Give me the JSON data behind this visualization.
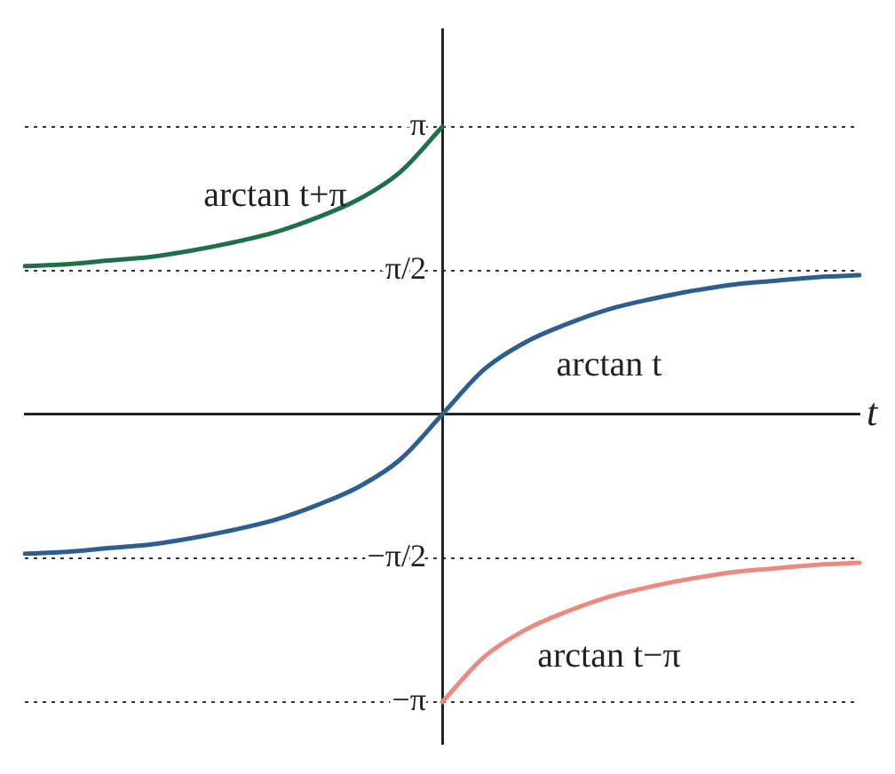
{
  "chart_data": {
    "type": "line",
    "xlabel": "t",
    "categories": [
      null,
      null,
      null,
      null,
      null,
      null,
      null,
      null,
      null,
      null,
      null,
      null,
      null,
      null,
      null,
      null,
      null,
      null,
      null,
      null,
      null
    ],
    "series": [
      {
        "name": "arctan t+π",
        "color": "#1e7048",
        "values": [
          1.62,
          1.64,
          1.68,
          1.72,
          1.79,
          1.88,
          1.99,
          2.15,
          2.35,
          2.65,
          3.14,
          null,
          null,
          null,
          null,
          null,
          null,
          null,
          null,
          null,
          null
        ]
      },
      {
        "name": "arctan t",
        "color": "#2c5f8f",
        "values": [
          -1.52,
          -1.5,
          -1.46,
          -1.42,
          -1.35,
          -1.26,
          -1.15,
          -0.99,
          -0.79,
          -0.49,
          0,
          0.49,
          0.79,
          0.99,
          1.15,
          1.26,
          1.35,
          1.42,
          1.46,
          1.5,
          1.52
        ]
      },
      {
        "name": "arctan t−π",
        "color": "#ec8a80",
        "values": [
          null,
          null,
          null,
          null,
          null,
          null,
          null,
          null,
          null,
          null,
          -3.14,
          -2.65,
          -2.35,
          -2.15,
          -1.99,
          -1.88,
          -1.79,
          -1.72,
          -1.68,
          -1.64,
          -1.62
        ]
      }
    ],
    "ylim": [
      -3.6,
      4.2
    ],
    "yticks": [
      {
        "value": 3.14,
        "label": "π"
      },
      {
        "value": 1.57,
        "label": "π/2"
      },
      {
        "value": -1.57,
        "label": "−π/2"
      },
      {
        "value": -3.14,
        "label": "−π"
      }
    ],
    "ref_lines": [
      {
        "axis": "y",
        "value": 3.14,
        "line_style": "dotted",
        "color": "#333333"
      },
      {
        "axis": "y",
        "value": 1.57,
        "line_style": "dotted",
        "color": "#333333"
      },
      {
        "axis": "y",
        "value": -1.57,
        "line_style": "dotted",
        "color": "#333333"
      },
      {
        "axis": "y",
        "value": -3.14,
        "line_style": "dotted",
        "color": "#333333"
      }
    ],
    "tick_labels": "y",
    "grid": false,
    "legend": false,
    "marker": "none",
    "line_style": "solid"
  }
}
